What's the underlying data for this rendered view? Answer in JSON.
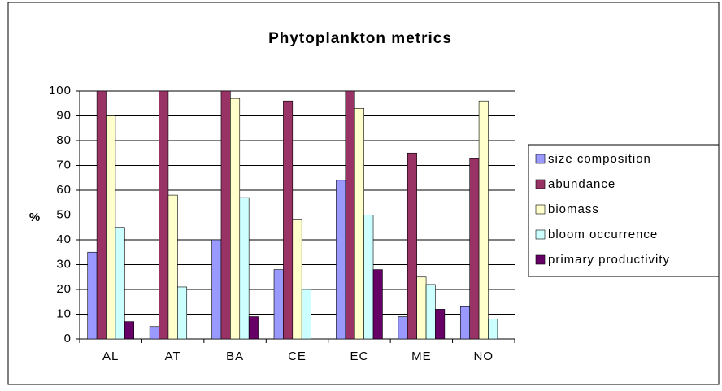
{
  "chart_data": {
    "type": "bar",
    "title": "Phytoplankton metrics",
    "y_label": "%",
    "categories": [
      "AL",
      "AT",
      "BA",
      "CE",
      "EC",
      "ME",
      "NO"
    ],
    "series": [
      {
        "name": "size composition",
        "color": "#9999ff",
        "values": [
          35,
          5,
          40,
          28,
          64,
          9,
          13
        ]
      },
      {
        "name": "abundance",
        "color": "#993366",
        "values": [
          100,
          100,
          100,
          96,
          100,
          75,
          73
        ]
      },
      {
        "name": "biomass",
        "color": "#ffffcc",
        "values": [
          90,
          58,
          97,
          48,
          93,
          25,
          96
        ]
      },
      {
        "name": "bloom occurrence",
        "color": "#ccffff",
        "values": [
          45,
          21,
          57,
          20,
          50,
          22,
          8
        ]
      },
      {
        "name": "primary productivity",
        "color": "#660066",
        "values": [
          7,
          0,
          9,
          0,
          28,
          12,
          0
        ]
      }
    ],
    "ylim": [
      0,
      100
    ],
    "yticks": [
      0,
      10,
      20,
      30,
      40,
      50,
      60,
      70,
      80,
      90,
      100
    ],
    "grid": true,
    "legend": "right"
  }
}
